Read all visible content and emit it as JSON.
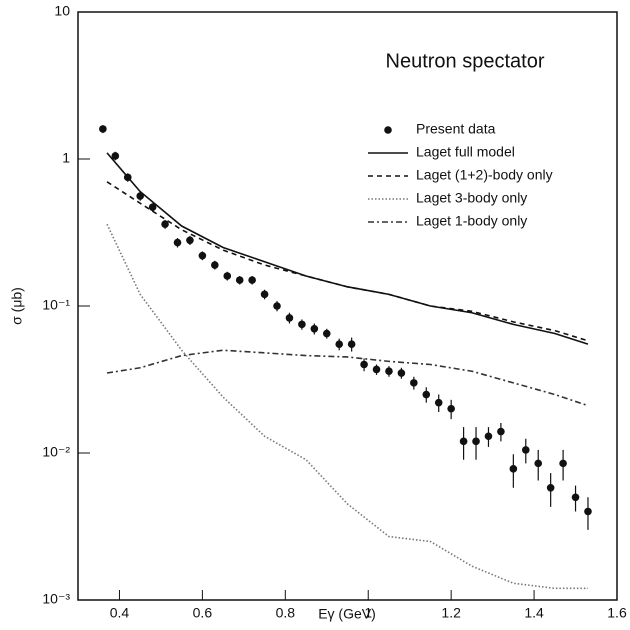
{
  "chart_data": {
    "type": "line",
    "annotation": "Neutron spectator",
    "xlabel": "Eγ (GeV)",
    "ylabel": "σ (μb)",
    "xlim": [
      0.3,
      1.6
    ],
    "xticks": [
      0.4,
      0.6,
      0.8,
      1,
      1.2,
      1.4,
      1.6
    ],
    "ylim": [
      0.001,
      10
    ],
    "log_y": true,
    "yticks": [
      {
        "value": 0.001,
        "label": "10⁻³"
      },
      {
        "value": 0.01,
        "label": "10⁻²"
      },
      {
        "value": 0.1,
        "label": "10⁻¹"
      },
      1,
      10
    ],
    "series": [
      {
        "name": "Present data",
        "color": "#111",
        "style": "marker",
        "x": [
          0.36,
          0.39,
          0.42,
          0.45,
          0.48,
          0.51,
          0.54,
          0.57,
          0.6,
          0.63,
          0.66,
          0.69,
          0.72,
          0.75,
          0.78,
          0.81,
          0.84,
          0.87,
          0.9,
          0.93,
          0.96,
          0.99,
          1.02,
          1.05,
          1.08,
          1.11,
          1.14,
          1.17,
          1.2,
          1.23,
          1.26,
          1.29,
          1.32,
          1.35,
          1.38,
          1.41,
          1.44,
          1.47,
          1.5,
          1.53
        ],
        "values": [
          1.6,
          1.05,
          0.75,
          0.56,
          0.47,
          0.36,
          0.27,
          0.28,
          0.22,
          0.19,
          0.16,
          0.15,
          0.15,
          0.12,
          0.1,
          0.083,
          0.075,
          0.07,
          0.065,
          0.055,
          0.055,
          0.04,
          0.037,
          0.036,
          0.035,
          0.03,
          0.025,
          0.022,
          0.02,
          0.012,
          0.012,
          0.013,
          0.014,
          0.0078,
          0.0105,
          0.0085,
          0.0058,
          0.0085,
          0.005,
          0.004
        ],
        "errors": [
          0.1,
          0.07,
          0.05,
          0.04,
          0.03,
          0.025,
          0.02,
          0.02,
          0.015,
          0.013,
          0.011,
          0.01,
          0.01,
          0.009,
          0.008,
          0.007,
          0.006,
          0.006,
          0.005,
          0.005,
          0.006,
          0.004,
          0.003,
          0.003,
          0.003,
          0.003,
          0.003,
          0.003,
          0.003,
          0.003,
          0.003,
          0.002,
          0.002,
          0.002,
          0.002,
          0.002,
          0.0015,
          0.002,
          0.001,
          0.001
        ]
      },
      {
        "name": "Laget full model",
        "color": "#111",
        "style": "solid",
        "x": [
          0.37,
          0.45,
          0.55,
          0.65,
          0.75,
          0.85,
          0.95,
          1.05,
          1.15,
          1.25,
          1.35,
          1.45,
          1.53
        ],
        "values": [
          1.1,
          0.6,
          0.35,
          0.25,
          0.2,
          0.16,
          0.135,
          0.12,
          0.1,
          0.09,
          0.075,
          0.065,
          0.055
        ]
      },
      {
        "name": "Laget (1+2)-body only",
        "color": "#111",
        "style": "dashed",
        "x": [
          0.37,
          0.45,
          0.55,
          0.65,
          0.75,
          0.85,
          0.95,
          1.05,
          1.15,
          1.25,
          1.35,
          1.45,
          1.53
        ],
        "values": [
          0.7,
          0.5,
          0.33,
          0.24,
          0.19,
          0.16,
          0.135,
          0.12,
          0.1,
          0.092,
          0.078,
          0.068,
          0.058
        ]
      },
      {
        "name": "Laget 3-body only",
        "color": "#777",
        "style": "dotted",
        "x": [
          0.37,
          0.45,
          0.55,
          0.65,
          0.75,
          0.85,
          0.95,
          1.05,
          1.15,
          1.25,
          1.35,
          1.45,
          1.53
        ],
        "values": [
          0.36,
          0.12,
          0.05,
          0.024,
          0.013,
          0.009,
          0.0045,
          0.0027,
          0.0025,
          0.0017,
          0.0013,
          0.0012,
          0.0012
        ]
      },
      {
        "name": "Laget 1-body only",
        "color": "#333",
        "style": "dashdot",
        "x": [
          0.37,
          0.45,
          0.55,
          0.65,
          0.75,
          0.85,
          0.95,
          1.05,
          1.15,
          1.25,
          1.35,
          1.45,
          1.53
        ],
        "values": [
          0.035,
          0.038,
          0.046,
          0.05,
          0.048,
          0.046,
          0.045,
          0.042,
          0.04,
          0.036,
          0.03,
          0.025,
          0.021
        ]
      }
    ]
  }
}
